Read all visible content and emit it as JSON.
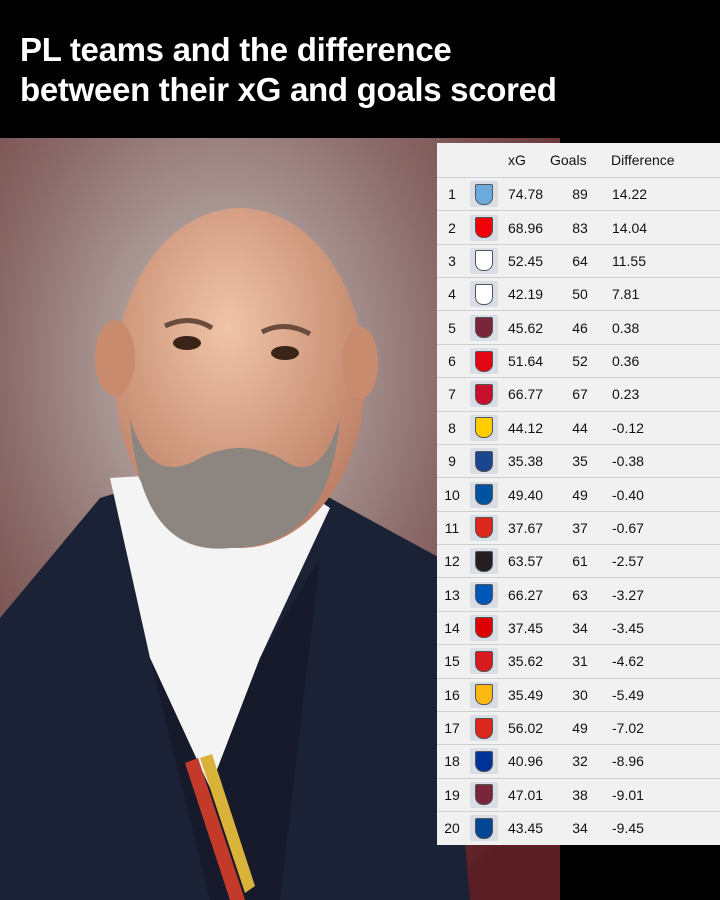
{
  "header": {
    "title_lines": [
      "PL teams and the difference",
      "between their xG and goals scored"
    ]
  },
  "table": {
    "columns": [
      "xG",
      "Goals",
      "Difference"
    ],
    "rows": [
      [
        "1",
        "74.78",
        "89",
        "14.22"
      ],
      [
        "2",
        "68.96",
        "83",
        "14.04"
      ],
      [
        "3",
        "52.45",
        "64",
        "11.55"
      ],
      [
        "4",
        "42.19",
        "50",
        "7.81"
      ],
      [
        "5",
        "45.62",
        "46",
        "0.38"
      ],
      [
        "6",
        "51.64",
        "52",
        "0.36"
      ],
      [
        "7",
        "66.77",
        "67",
        "0.23"
      ],
      [
        "8",
        "44.12",
        "44",
        "-0.12"
      ],
      [
        "9",
        "35.38",
        "35",
        "-0.38"
      ],
      [
        "10",
        "49.40",
        "49",
        "-0.40"
      ],
      [
        "11",
        "37.67",
        "37",
        "-0.67"
      ],
      [
        "12",
        "63.57",
        "61",
        "-2.57"
      ],
      [
        "13",
        "66.27",
        "63",
        "-3.27"
      ],
      [
        "14",
        "37.45",
        "34",
        "-3.45"
      ],
      [
        "15",
        "35.62",
        "31",
        "-4.62"
      ],
      [
        "16",
        "35.49",
        "30",
        "-5.49"
      ],
      [
        "17",
        "56.02",
        "49",
        "-7.02"
      ],
      [
        "18",
        "40.96",
        "32",
        "-8.96"
      ],
      [
        "19",
        "47.01",
        "38",
        "-9.01"
      ],
      [
        "20",
        "43.45",
        "34",
        "-9.45"
      ]
    ]
  }
}
